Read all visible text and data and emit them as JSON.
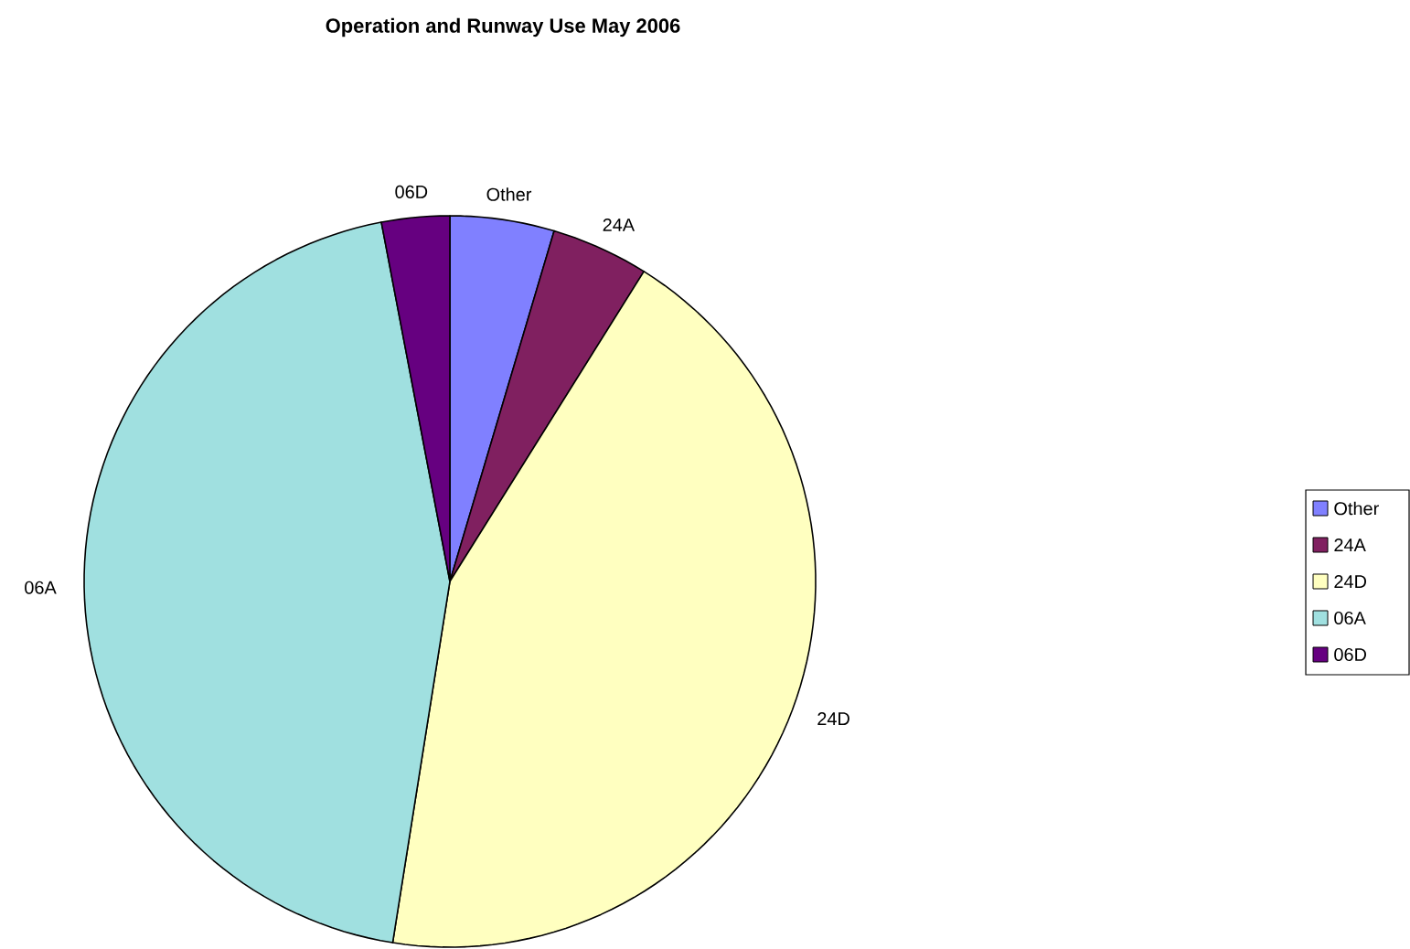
{
  "chart_data": {
    "type": "pie",
    "title": "Operation and Runway Use May 2006",
    "categories": [
      "Other",
      "24A",
      "24D",
      "06A",
      "06D"
    ],
    "values": [
      4.6,
      4.3,
      43.6,
      44.5,
      3.0
    ],
    "colors": [
      "#8080ff",
      "#802060",
      "#ffffc0",
      "#a0e0e0",
      "#660080"
    ],
    "legend": "right"
  }
}
